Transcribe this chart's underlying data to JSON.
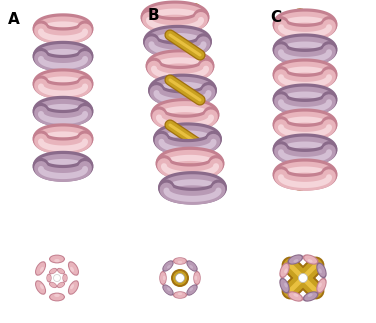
{
  "background_color": "#ffffff",
  "labels": [
    "A",
    "B",
    "C"
  ],
  "label_fontsize": 11,
  "label_fontweight": "bold",
  "pink": "#e8b4bc",
  "pink_dark": "#c48090",
  "pink_light": "#f5d5da",
  "mauve": "#b89ab5",
  "mauve_dark": "#8a6a8a",
  "mauve_light": "#d4bfd4",
  "gold": "#c8a020",
  "gold_light": "#e8c040",
  "gold_dark": "#a07010",
  "white": "#ffffff",
  "figsize": [
    3.76,
    3.23
  ],
  "dpi": 100
}
